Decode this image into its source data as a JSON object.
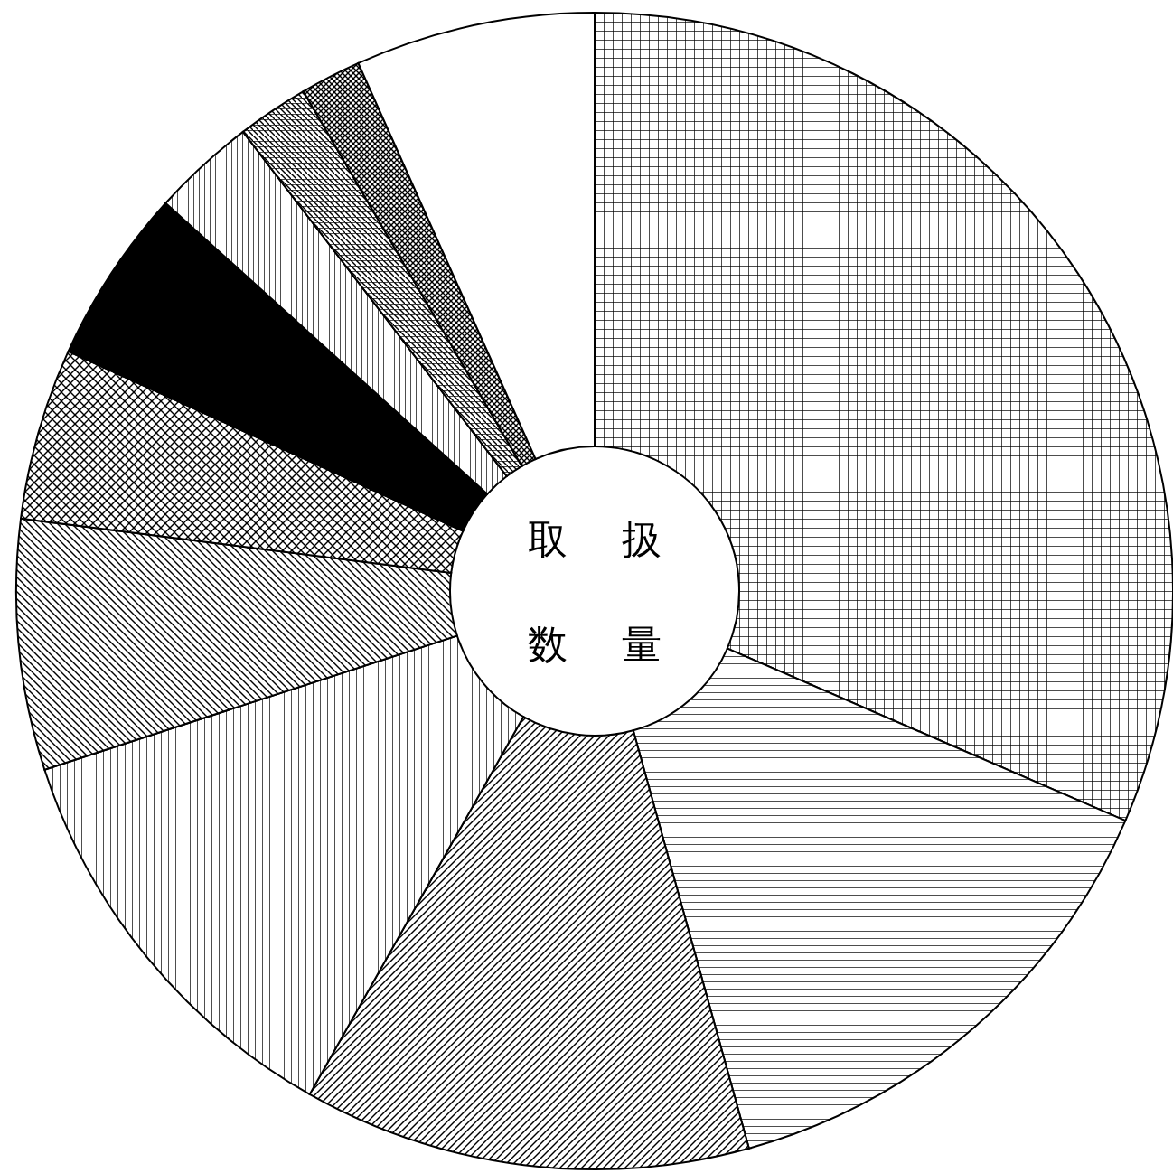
{
  "chart_data": {
    "type": "donut",
    "title": "取扱数量",
    "categories": [
      null,
      null,
      null,
      null,
      null,
      null,
      null,
      null,
      null,
      null,
      null
    ],
    "values": [
      31.5,
      14.2,
      12.5,
      11.8,
      7.0,
      4.8,
      4.9,
      2.9,
      2.0,
      1.7,
      6.7
    ],
    "colors": [
      "#000000",
      "#000000",
      "#000000",
      "#000000",
      "#000000",
      "#000000",
      "#000000",
      "#000000",
      "#000000",
      "#000000",
      "#ffffff"
    ]
  }
}
